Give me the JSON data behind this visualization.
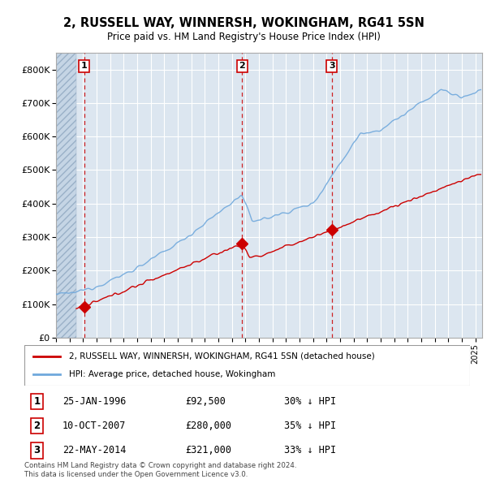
{
  "title": "2, RUSSELL WAY, WINNERSH, WOKINGHAM, RG41 5SN",
  "subtitle": "Price paid vs. HM Land Registry's House Price Index (HPI)",
  "ylabel_values": [
    "£0",
    "£100K",
    "£200K",
    "£300K",
    "£400K",
    "£500K",
    "£600K",
    "£700K",
    "£800K"
  ],
  "ytick_values": [
    0,
    100000,
    200000,
    300000,
    400000,
    500000,
    600000,
    700000,
    800000
  ],
  "ylim": [
    0,
    850000
  ],
  "xlim_start": 1994.0,
  "xlim_end": 2025.5,
  "hatch_end": 1995.5,
  "sale_dates": [
    1996.08,
    2007.75,
    2014.39
  ],
  "sale_prices": [
    92500,
    280000,
    321000
  ],
  "sale_labels": [
    "1",
    "2",
    "3"
  ],
  "sale_label_prices": [
    "£92,500",
    "£280,000",
    "£321,000"
  ],
  "sale_label_hpi": [
    "30% ↓ HPI",
    "35% ↓ HPI",
    "33% ↓ HPI"
  ],
  "sale_dates_text": [
    "25-JAN-1996",
    "10-OCT-2007",
    "22-MAY-2014"
  ],
  "property_color": "#cc0000",
  "hpi_color": "#6fa8dc",
  "property_label": "2, RUSSELL WAY, WINNERSH, WOKINGHAM, RG41 5SN (detached house)",
  "hpi_label": "HPI: Average price, detached house, Wokingham",
  "copyright_text": "Contains HM Land Registry data © Crown copyright and database right 2024.\nThis data is licensed under the Open Government Licence v3.0.",
  "plot_bg_color": "#dce6f0",
  "grid_color": "#ffffff"
}
